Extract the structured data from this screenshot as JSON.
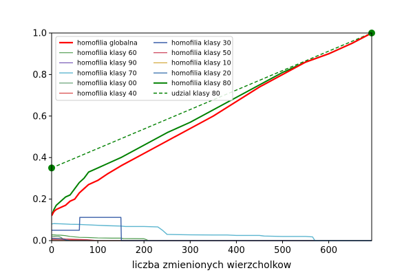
{
  "chart_data": {
    "type": "line",
    "title": "",
    "xlabel": "liczba zmienionych wierzcholkow",
    "ylabel": "",
    "xlim": [
      0,
      693
    ],
    "ylim": [
      0,
      1.0
    ],
    "xticks": [
      0,
      100,
      200,
      300,
      400,
      500,
      600
    ],
    "yticks": [
      0.0,
      0.2,
      0.4,
      0.6,
      0.8,
      1.0
    ],
    "xtick_labels": [
      "0",
      "100",
      "200",
      "300",
      "400",
      "500",
      "600"
    ],
    "ytick_labels": [
      "0.0",
      "0.2",
      "0.4",
      "0.6",
      "0.8",
      "1.0"
    ],
    "grid": false,
    "legend_placement": "top-left",
    "legend_columns": 2,
    "series": [
      {
        "name": "homofilia globalna",
        "color": "#ff0000",
        "width": 2.2,
        "dash": "solid",
        "x": [
          0,
          5,
          10,
          20,
          30,
          40,
          50,
          60,
          70,
          80,
          100,
          120,
          150,
          200,
          250,
          300,
          350,
          400,
          450,
          500,
          550,
          600,
          650,
          693
        ],
        "y": [
          0.12,
          0.14,
          0.15,
          0.16,
          0.17,
          0.19,
          0.2,
          0.23,
          0.25,
          0.27,
          0.29,
          0.32,
          0.36,
          0.42,
          0.48,
          0.54,
          0.6,
          0.67,
          0.74,
          0.8,
          0.86,
          0.9,
          0.95,
          1.0
        ]
      },
      {
        "name": "homofilia klasy 60",
        "color": "#4c9a4c",
        "width": 1.2,
        "dash": "solid",
        "x": [
          0,
          5,
          10,
          20,
          30,
          40,
          50,
          60,
          80,
          100,
          130,
          150,
          155,
          200,
          205,
          210
        ],
        "y": [
          0.028,
          0.028,
          0.027,
          0.026,
          0.024,
          0.02,
          0.018,
          0.016,
          0.015,
          0.013,
          0.012,
          0.012,
          0.01,
          0.009,
          0.005,
          0.0
        ]
      },
      {
        "name": "homofilia klasy 90",
        "color": "#7b5fb8",
        "width": 1.2,
        "dash": "solid",
        "x": [
          0,
          693
        ],
        "y": [
          0.0,
          0.0
        ]
      },
      {
        "name": "homofilia klasy 70",
        "color": "#5bb5cf",
        "width": 1.4,
        "dash": "solid",
        "x": [
          0,
          5,
          20,
          40,
          60,
          80,
          100,
          120,
          150,
          160,
          200,
          230,
          240,
          250,
          300,
          350,
          380,
          400,
          450,
          460,
          500,
          550,
          565,
          570,
          693
        ],
        "y": [
          0.08,
          0.082,
          0.081,
          0.079,
          0.078,
          0.076,
          0.074,
          0.072,
          0.07,
          0.068,
          0.068,
          0.066,
          0.05,
          0.03,
          0.028,
          0.027,
          0.027,
          0.025,
          0.025,
          0.022,
          0.02,
          0.02,
          0.018,
          0.0,
          0.0
        ]
      },
      {
        "name": "homofilia klasy 00",
        "color": "#5a9a6a",
        "width": 1.2,
        "dash": "solid",
        "x": [
          0,
          5,
          15,
          20,
          30,
          693
        ],
        "y": [
          0.02,
          0.021,
          0.02,
          0.016,
          0.0,
          0.0
        ]
      },
      {
        "name": "homofilia klasy 40",
        "color": "#d94a4a",
        "width": 1.2,
        "dash": "solid",
        "x": [
          0,
          30,
          60,
          80,
          693
        ],
        "y": [
          0.005,
          0.004,
          0.003,
          0.0,
          0.0
        ]
      },
      {
        "name": "homofilia klasy 30",
        "color": "#3a5fa8",
        "width": 1.4,
        "dash": "solid",
        "x": [
          0,
          60,
          61,
          150,
          151,
          693
        ],
        "y": [
          0.05,
          0.05,
          0.112,
          0.112,
          0.0,
          0.0
        ]
      },
      {
        "name": "homofilia klasy 50",
        "color": "#c8304a",
        "width": 1.2,
        "dash": "solid",
        "x": [
          0,
          20,
          30,
          80,
          100,
          693
        ],
        "y": [
          0.012,
          0.01,
          0.008,
          0.004,
          0.0,
          0.0
        ]
      },
      {
        "name": "homofilia klasy 10",
        "color": "#d4aa40",
        "width": 1.2,
        "dash": "solid",
        "x": [
          0,
          693
        ],
        "y": [
          0.0,
          0.0
        ]
      },
      {
        "name": "homofilia klasy 20",
        "color": "#2f6aa8",
        "width": 1.2,
        "dash": "solid",
        "x": [
          0,
          20,
          40,
          693
        ],
        "y": [
          0.01,
          0.009,
          0.0,
          0.0
        ]
      },
      {
        "name": "homofilia klasy 80",
        "color": "#008000",
        "width": 2.0,
        "dash": "solid",
        "x": [
          0,
          5,
          10,
          20,
          30,
          40,
          50,
          60,
          70,
          80,
          100,
          120,
          150,
          200,
          250,
          300,
          350,
          400,
          450,
          500,
          550,
          600,
          650,
          693
        ],
        "y": [
          0.12,
          0.15,
          0.17,
          0.19,
          0.21,
          0.22,
          0.25,
          0.28,
          0.3,
          0.33,
          0.35,
          0.37,
          0.4,
          0.46,
          0.52,
          0.57,
          0.63,
          0.69,
          0.75,
          0.81,
          0.86,
          0.9,
          0.95,
          1.0
        ]
      },
      {
        "name": "udzial klasy 80",
        "color": "#008000",
        "width": 1.4,
        "dash": "5,3",
        "x": [
          0,
          693
        ],
        "y": [
          0.35,
          1.0
        ]
      }
    ],
    "markers": [
      {
        "series": "udzial klasy 80",
        "x": 0,
        "y": 0.35,
        "color": "#008000"
      },
      {
        "series": "udzial klasy 80",
        "x": 693,
        "y": 1.0,
        "color": "#008000"
      }
    ]
  }
}
